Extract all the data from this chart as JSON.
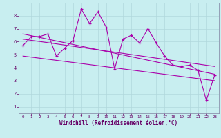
{
  "xlabel": "Windchill (Refroidissement éolien,°C)",
  "bg_color": "#c8eef0",
  "grid_color": "#b0d8dc",
  "line_color": "#aa00aa",
  "x_values": [
    0,
    1,
    2,
    3,
    4,
    5,
    6,
    7,
    8,
    9,
    10,
    11,
    12,
    13,
    14,
    15,
    16,
    17,
    18,
    19,
    20,
    21,
    22,
    23
  ],
  "y_main": [
    5.7,
    6.4,
    6.4,
    6.6,
    4.9,
    5.5,
    6.1,
    8.5,
    7.4,
    8.3,
    7.1,
    3.9,
    6.2,
    6.5,
    5.9,
    7.0,
    5.9,
    4.9,
    4.2,
    4.1,
    4.2,
    3.8,
    1.5,
    3.4
  ],
  "ylim": [
    0.5,
    9.0
  ],
  "xlim": [
    -0.5,
    23.5
  ],
  "yticks": [
    1,
    2,
    3,
    4,
    5,
    6,
    7,
    8
  ],
  "xticks": [
    0,
    1,
    2,
    3,
    4,
    5,
    6,
    7,
    8,
    9,
    10,
    11,
    12,
    13,
    14,
    15,
    16,
    17,
    18,
    19,
    20,
    21,
    22,
    23
  ],
  "trend1_start": 6.6,
  "trend1_end": 3.5,
  "trend2_start": 6.2,
  "trend2_end": 4.1,
  "trend3_start": 4.9,
  "trend3_end": 3.0
}
